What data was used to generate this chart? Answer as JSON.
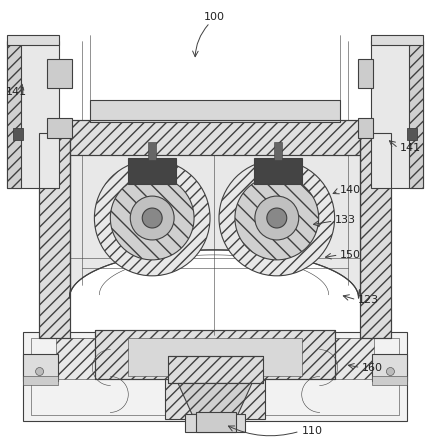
{
  "background_color": "#ffffff",
  "line_color": "#404040",
  "fig_width": 4.29,
  "fig_height": 4.44,
  "dpi": 100
}
